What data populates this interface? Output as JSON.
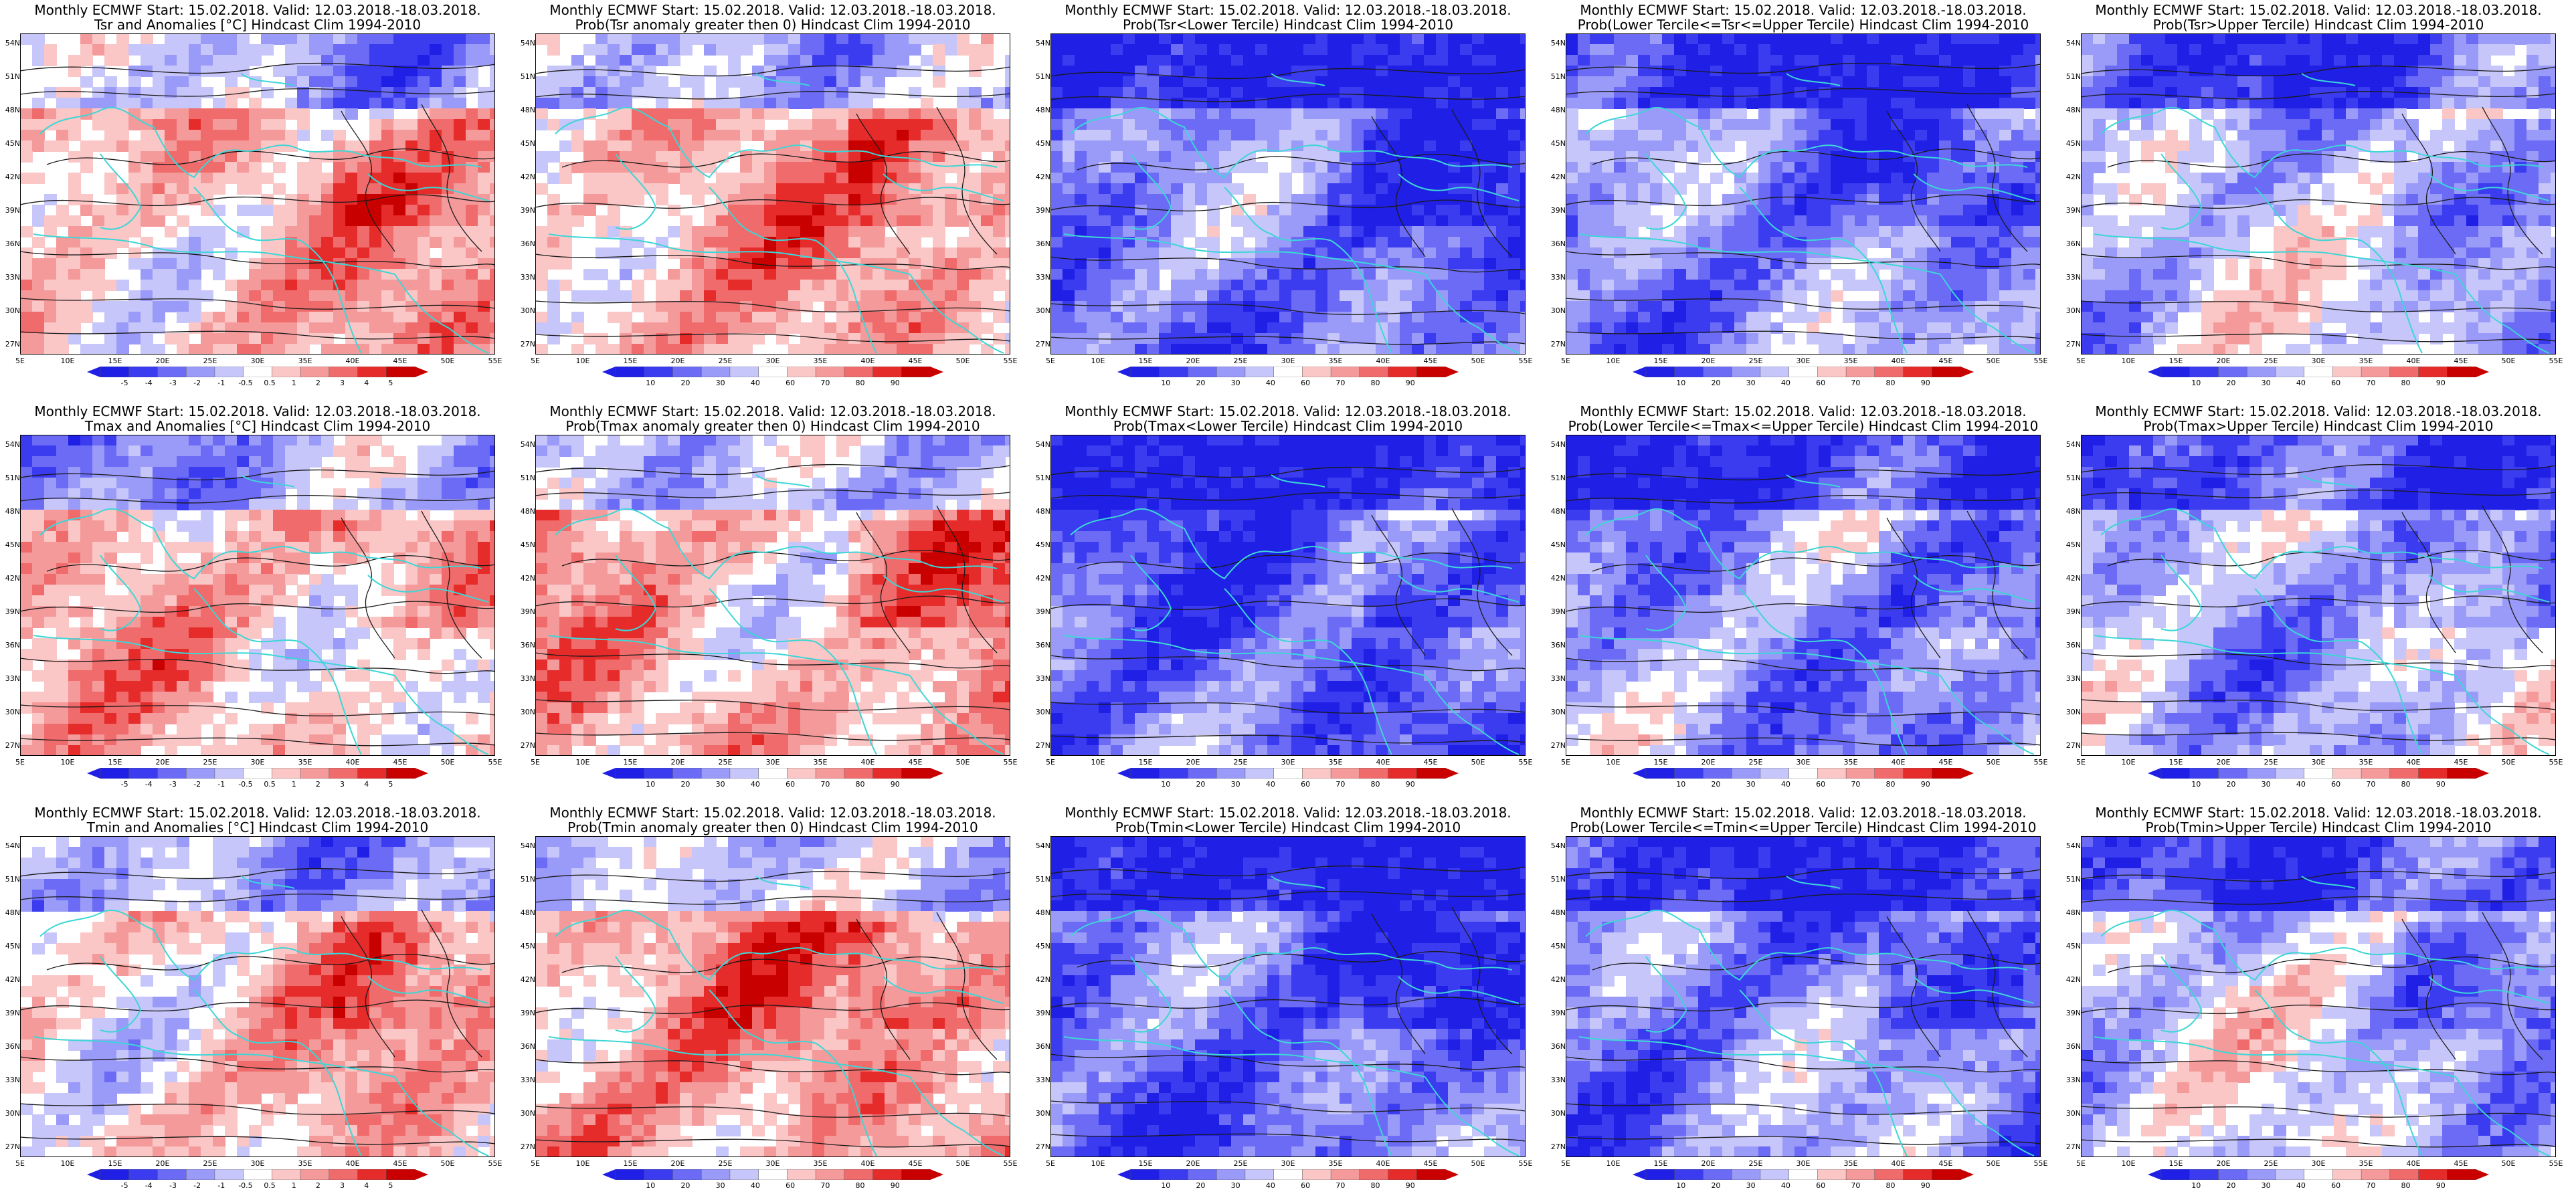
{
  "colors": {
    "ocean_bg": "#ffffff",
    "coast": "#3dd6d6",
    "contour": "#1a1a1a",
    "scale": [
      "#1f1fe6",
      "#3b3bf0",
      "#6b6bf5",
      "#9a9af8",
      "#c6c6fb",
      "#ffffff",
      "#fbc6c6",
      "#f59a9a",
      "#f06b6b",
      "#e62b2b",
      "#c80000"
    ]
  },
  "map": {
    "lat_labels": [
      "54N",
      "51N",
      "48N",
      "45N",
      "42N",
      "39N",
      "36N",
      "33N",
      "30N",
      "27N"
    ],
    "lon_labels": [
      "5E",
      "10E",
      "15E",
      "20E",
      "25E",
      "30E",
      "35E",
      "40E",
      "45E",
      "50E",
      "55E"
    ]
  },
  "colorbars": {
    "anomaly": [
      "-5",
      "-4",
      "-3",
      "-2",
      "-1",
      "-0.5",
      "0.5",
      "1",
      "2",
      "3",
      "4",
      "5"
    ],
    "prob": [
      "10",
      "20",
      "30",
      "40",
      "60",
      "70",
      "80",
      "90"
    ]
  },
  "panels": [
    {
      "line1": "Monthly ECMWF Start: 15.02.2018. Valid: 12.03.2018.-18.03.2018.",
      "line2": "Tsr and Anomalies [°C] Hindcast Clim 1994-2010",
      "kind": "anomaly",
      "bias": 0.25
    },
    {
      "line1": "Monthly ECMWF Start: 15.02.2018. Valid: 12.03.2018.-18.03.2018.",
      "line2": "Prob(Tsr anomaly greater then 0) Hindcast Clim 1994-2010",
      "kind": "prob",
      "bias": 0.3
    },
    {
      "line1": "Monthly ECMWF Start: 15.02.2018. Valid: 12.03.2018.-18.03.2018.",
      "line2": "Prob(Tsr<Lower Tercile) Hindcast Clim 1994-2010",
      "kind": "prob",
      "bias": -0.55
    },
    {
      "line1": "Monthly ECMWF Start: 15.02.2018. Valid: 12.03.2018.-18.03.2018.",
      "line2": "Prob(Lower Tercile<=Tsr<=Upper Tercile) Hindcast Clim 1994-2010",
      "kind": "prob",
      "bias": -0.45
    },
    {
      "line1": "Monthly ECMWF Start: 15.02.2018. Valid: 12.03.2018.-18.03.2018.",
      "line2": "Prob(Tsr>Upper Tercile) Hindcast Clim 1994-2010",
      "kind": "prob",
      "bias": -0.2
    },
    {
      "line1": "Monthly ECMWF Start: 15.02.2018. Valid: 12.03.2018.-18.03.2018.",
      "line2": "Tmax and Anomalies [°C] Hindcast Clim 1994-2010",
      "kind": "anomaly",
      "bias": 0.2
    },
    {
      "line1": "Monthly ECMWF Start: 15.02.2018. Valid: 12.03.2018.-18.03.2018.",
      "line2": "Prob(Tmax anomaly greater then 0) Hindcast Clim 1994-2010",
      "kind": "prob",
      "bias": 0.3
    },
    {
      "line1": "Monthly ECMWF Start: 15.02.2018. Valid: 12.03.2018.-18.03.2018.",
      "line2": "Prob(Tmax<Lower Tercile) Hindcast Clim 1994-2010",
      "kind": "prob",
      "bias": -0.6
    },
    {
      "line1": "Monthly ECMWF Start: 15.02.2018. Valid: 12.03.2018.-18.03.2018.",
      "line2": "Prob(Lower Tercile<=Tmax<=Upper Tercile) Hindcast Clim 1994-2010",
      "kind": "prob",
      "bias": -0.4
    },
    {
      "line1": "Monthly ECMWF Start: 15.02.2018. Valid: 12.03.2018.-18.03.2018.",
      "line2": "Prob(Tmax>Upper Tercile) Hindcast Clim 1994-2010",
      "kind": "prob",
      "bias": -0.25
    },
    {
      "line1": "Monthly ECMWF Start: 15.02.2018. Valid: 12.03.2018.-18.03.2018.",
      "line2": "Tmin and Anomalies [°C] Hindcast Clim 1994-2010",
      "kind": "anomaly",
      "bias": 0.2
    },
    {
      "line1": "Monthly ECMWF Start: 15.02.2018. Valid: 12.03.2018.-18.03.2018.",
      "line2": "Prob(Tmin anomaly greater then 0) Hindcast Clim 1994-2010",
      "kind": "prob",
      "bias": 0.35
    },
    {
      "line1": "Monthly ECMWF Start: 15.02.2018. Valid: 12.03.2018.-18.03.2018.",
      "line2": "Prob(Tmin<Lower Tercile) Hindcast Clim 1994-2010",
      "kind": "prob",
      "bias": -0.6
    },
    {
      "line1": "Monthly ECMWF Start: 15.02.2018. Valid: 12.03.2018.-18.03.2018.",
      "line2": "Prob(Lower Tercile<=Tmin<=Upper Tercile) Hindcast Clim 1994-2010",
      "kind": "prob",
      "bias": -0.45
    },
    {
      "line1": "Monthly ECMWF Start: 15.02.2018. Valid: 12.03.2018.-18.03.2018.",
      "line2": "Prob(Tmin>Upper Tercile) Hindcast Clim 1994-2010",
      "kind": "prob",
      "bias": -0.2
    }
  ]
}
